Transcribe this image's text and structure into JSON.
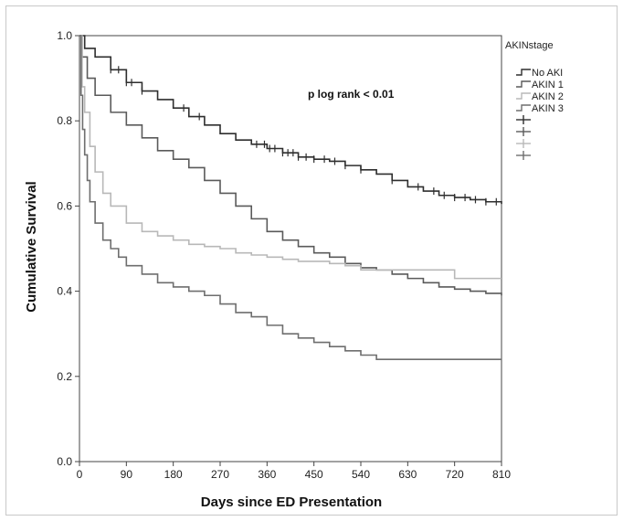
{
  "chart_data": {
    "type": "line",
    "title": "",
    "xlabel": "Days since ED Presentation",
    "ylabel": "Cumulative Survival",
    "xlim": [
      0,
      810
    ],
    "ylim": [
      0,
      1.0
    ],
    "xticks": [
      0,
      90,
      180,
      270,
      360,
      450,
      540,
      630,
      720,
      810
    ],
    "xtick_labels": [
      "0",
      "90",
      "180",
      "270",
      "360",
      "450",
      "540",
      "630",
      "720",
      "810"
    ],
    "yticks": [
      0,
      0.2,
      0.4,
      0.6,
      0.8,
      1.0
    ],
    "ytick_labels": [
      "0.0",
      "0.2",
      "0.4",
      "0.6",
      "0.8",
      "1.0"
    ],
    "grid": false,
    "annotation": "p log rank < 0.01",
    "legend": {
      "title": "AKINstage",
      "position": "right",
      "entries": [
        "No AKI",
        "AKIN 1",
        "AKIN 2",
        "AKIN 3"
      ],
      "censor_rows": 4
    },
    "series": [
      {
        "name": "No AKI",
        "color": "#2e2e2e",
        "x": [
          0,
          10,
          30,
          60,
          90,
          120,
          150,
          180,
          210,
          240,
          270,
          300,
          330,
          360,
          390,
          420,
          450,
          480,
          510,
          540,
          570,
          600,
          630,
          660,
          690,
          720,
          750,
          780,
          810
        ],
        "y": [
          1.0,
          0.97,
          0.95,
          0.92,
          0.89,
          0.87,
          0.85,
          0.83,
          0.81,
          0.79,
          0.77,
          0.755,
          0.745,
          0.735,
          0.725,
          0.715,
          0.71,
          0.705,
          0.695,
          0.685,
          0.675,
          0.66,
          0.645,
          0.635,
          0.625,
          0.62,
          0.615,
          0.61,
          0.605
        ],
        "censor_x": [
          60,
          75,
          90,
          100,
          120,
          200,
          230,
          340,
          355,
          365,
          375,
          390,
          400,
          410,
          420,
          435,
          450,
          470,
          490,
          510,
          540,
          600,
          650,
          680,
          700,
          720,
          740,
          760,
          780,
          800
        ]
      },
      {
        "name": "AKIN 1",
        "color": "#5a5a5a",
        "x": [
          0,
          5,
          15,
          30,
          60,
          90,
          120,
          150,
          180,
          210,
          240,
          270,
          300,
          330,
          360,
          390,
          420,
          450,
          480,
          510,
          540,
          570,
          600,
          630,
          660,
          690,
          720,
          750,
          780,
          810
        ],
        "y": [
          1.0,
          0.95,
          0.9,
          0.86,
          0.82,
          0.79,
          0.76,
          0.73,
          0.71,
          0.69,
          0.66,
          0.63,
          0.6,
          0.57,
          0.54,
          0.52,
          0.505,
          0.49,
          0.48,
          0.465,
          0.455,
          0.45,
          0.44,
          0.43,
          0.42,
          0.41,
          0.405,
          0.4,
          0.395,
          0.39
        ]
      },
      {
        "name": "AKIN 2",
        "color": "#b8b8b8",
        "x": [
          0,
          5,
          10,
          20,
          30,
          45,
          60,
          90,
          120,
          150,
          180,
          210,
          240,
          270,
          300,
          330,
          360,
          390,
          420,
          450,
          480,
          510,
          540,
          570,
          600,
          630,
          660,
          690,
          720,
          750,
          780,
          810
        ],
        "y": [
          1.0,
          0.88,
          0.82,
          0.74,
          0.68,
          0.63,
          0.6,
          0.56,
          0.54,
          0.53,
          0.52,
          0.51,
          0.505,
          0.5,
          0.49,
          0.485,
          0.48,
          0.475,
          0.47,
          0.47,
          0.465,
          0.46,
          0.45,
          0.45,
          0.45,
          0.45,
          0.45,
          0.45,
          0.43,
          0.43,
          0.43,
          0.43
        ]
      },
      {
        "name": "AKIN 3",
        "color": "#6e6e6e",
        "x": [
          0,
          3,
          6,
          10,
          15,
          20,
          30,
          45,
          60,
          75,
          90,
          120,
          150,
          180,
          210,
          240,
          270,
          300,
          330,
          360,
          390,
          420,
          450,
          480,
          510,
          540,
          570,
          600,
          630,
          660,
          690,
          720,
          750,
          780,
          810
        ],
        "y": [
          1.0,
          0.86,
          0.78,
          0.72,
          0.66,
          0.61,
          0.56,
          0.52,
          0.5,
          0.48,
          0.46,
          0.44,
          0.42,
          0.41,
          0.4,
          0.39,
          0.37,
          0.35,
          0.34,
          0.32,
          0.3,
          0.29,
          0.28,
          0.27,
          0.26,
          0.25,
          0.24,
          0.24,
          0.24,
          0.24,
          0.24,
          0.24,
          0.24,
          0.24,
          0.24
        ]
      }
    ]
  }
}
